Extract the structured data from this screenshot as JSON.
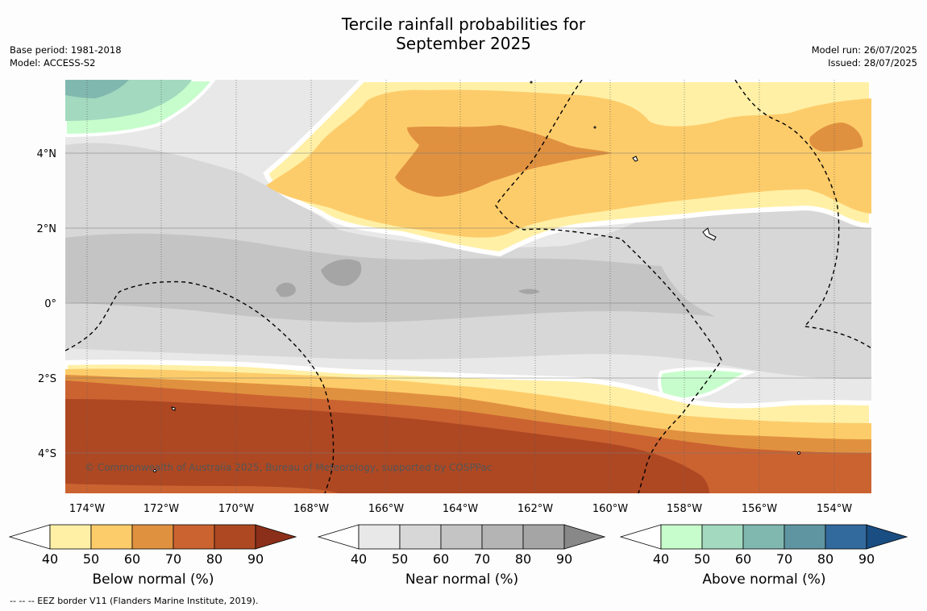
{
  "title_line1": "Tercile rainfall probabilities for",
  "title_line2": "September 2025",
  "meta_left": {
    "base_period": "Base period: 1981-2018",
    "model": "Model: ACCESS-S2"
  },
  "meta_right": {
    "model_run": "Model run: 26/07/2025",
    "issued": "Issued: 28/07/2025"
  },
  "map": {
    "lon_labels": [
      "174°W",
      "172°W",
      "170°W",
      "168°W",
      "166°W",
      "164°W",
      "162°W",
      "160°W",
      "158°W",
      "156°W",
      "154°W"
    ],
    "lat_labels": [
      "4°N",
      "2°N",
      "0°",
      "2°S",
      "4°S"
    ],
    "copyright": "© Commonwealth of Australia 2025, Bureau of Meteorology, supported by COSPPac"
  },
  "colorbars": [
    {
      "label": "Below normal (%)",
      "ticks": [
        "40",
        "50",
        "60",
        "70",
        "80",
        "90"
      ],
      "colors": [
        "#fff0a6",
        "#fdcc6a",
        "#e0913f",
        "#cb6331",
        "#ae4823",
        "#8c2f1a"
      ]
    },
    {
      "label": "Near normal (%)",
      "ticks": [
        "40",
        "50",
        "60",
        "70",
        "80",
        "90"
      ],
      "colors": [
        "#e8e8e8",
        "#d7d7d7",
        "#c4c4c4",
        "#b4b4b4",
        "#a5a5a5",
        "#888888"
      ]
    },
    {
      "label": "Above normal (%)",
      "ticks": [
        "40",
        "50",
        "60",
        "70",
        "80",
        "90"
      ],
      "colors": [
        "#c7fdcc",
        "#a2d9bf",
        "#80b8b0",
        "#5f95a0",
        "#336a9d",
        "#1a4e82"
      ]
    }
  ],
  "footnote": "--  --  -- EEZ border V11 (Flanders Marine Institute, 2019)."
}
